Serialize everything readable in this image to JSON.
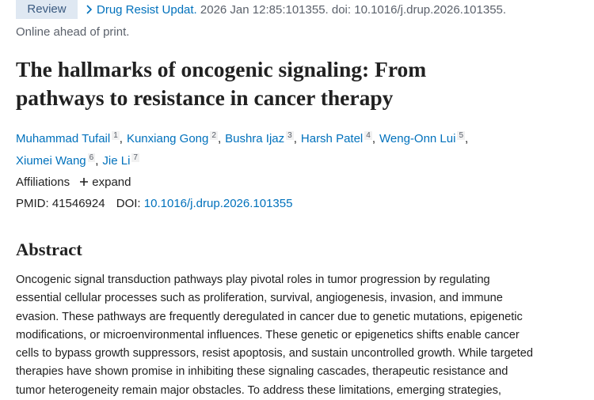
{
  "header": {
    "badge": "Review",
    "journal": "Drug Resist Updat.",
    "citation": "2026 Jan 12:85:101355. doi: 10.1016/j.drup.2026.101355.",
    "status": "Online ahead of print."
  },
  "article": {
    "title_lines": [
      "The hallmarks of oncogenic signaling: From",
      "pathways to resistance in cancer therapy"
    ],
    "author_lines": [
      [
        {
          "name": "Muhammad Tufail",
          "affiliation": "1",
          "separator": ","
        },
        {
          "name": "Kunxiang Gong",
          "affiliation": "2",
          "separator": ","
        },
        {
          "name": "Bushra Ijaz",
          "affiliation": "3",
          "separator": ","
        },
        {
          "name": "Harsh Patel",
          "affiliation": "4",
          "separator": ","
        },
        {
          "name": "Weng-Onn Lui",
          "affiliation": "5",
          "separator": ","
        }
      ],
      [
        {
          "name": "Xiumei Wang",
          "affiliation": "6",
          "separator": ","
        },
        {
          "name": "Jie Li",
          "affiliation": "7"
        }
      ]
    ],
    "affiliations_label": "Affiliations",
    "expand_label": "expand",
    "pmid_label": "PMID:",
    "pmid": "41546924",
    "doi_label": "DOI:",
    "doi": "10.1016/j.drup.2026.101355"
  },
  "abstract": {
    "heading": "Abstract",
    "lines": [
      "Oncogenic signal transduction pathways play pivotal roles in tumor progression by regulating",
      "essential cellular processes such as proliferation, survival, angiogenesis, invasion, and immune",
      "evasion. These pathways are frequently deregulated in cancer due to genetic mutations, epigenetic",
      "modifications, or microenvironmental influences. These genetic or epigenetics shifts enable cancer",
      "cells to bypass growth suppressors, resist apoptosis, and sustain uncontrolled growth. While targeted",
      "therapies have shown promise in inhibiting these signaling cascades, therapeutic resistance and",
      "tumor heterogeneity remain major obstacles. To address these limitations, emerging strategies,"
    ]
  }
}
